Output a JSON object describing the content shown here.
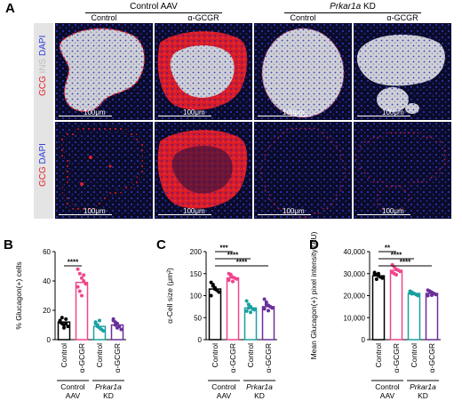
{
  "panel_a": {
    "letter": "A",
    "groups": [
      {
        "title": "Control AAV",
        "italic_part": "",
        "rest": ""
      },
      {
        "title": "",
        "italic_part": "Prkar1a",
        "rest": " KD"
      }
    ],
    "columns": [
      "Control",
      "α-GCGR",
      "Control",
      "α-GCGR"
    ],
    "row_labels": [
      {
        "parts": [
          {
            "text": "GCG",
            "color": "#e0202a"
          },
          {
            "text": " INS",
            "color": "#bdbdbd"
          },
          {
            "text": " DAPI",
            "color": "#2a3ad8"
          }
        ]
      },
      {
        "parts": [
          {
            "text": "GCG",
            "color": "#e0202a"
          },
          {
            "text": " DAPI",
            "color": "#2a3ad8"
          }
        ]
      }
    ],
    "scale_bar": "100μm"
  },
  "chart_data": [
    {
      "letter": "B",
      "type": "bar",
      "ylabel": "% Glucagon(+) cells",
      "ylim": [
        0,
        60
      ],
      "yticks": [
        0,
        20,
        40,
        60
      ],
      "categories": [
        "Control",
        "α-GCGR",
        "Control",
        "α-GCGR"
      ],
      "colors": [
        "#000000",
        "#f0468c",
        "#1aa0a0",
        "#6a2f9a"
      ],
      "means": [
        12,
        39,
        9,
        10
      ],
      "points": [
        [
          13,
          11,
          10,
          14,
          9,
          12,
          15,
          8,
          11
        ],
        [
          48,
          45,
          42,
          40,
          38,
          36,
          33,
          30,
          44
        ],
        [
          12,
          10,
          8,
          7,
          6,
          11,
          9,
          13
        ],
        [
          14,
          12,
          11,
          9,
          7,
          13,
          10,
          8
        ]
      ],
      "significance": [
        {
          "from": 0,
          "to": 1,
          "label": "****"
        }
      ],
      "group_labels": [
        {
          "text": "Control",
          "text2": "AAV",
          "italic": false
        },
        {
          "text": "Prkar1a",
          "text2": "KD",
          "italic": true
        }
      ]
    },
    {
      "letter": "C",
      "type": "bar",
      "ylabel": "α-Cell size (μm²)",
      "ylim": [
        0,
        200
      ],
      "yticks": [
        0,
        50,
        100,
        150,
        200
      ],
      "categories": [
        "Control",
        "α-GCGR",
        "Control",
        "α-GCGR"
      ],
      "colors": [
        "#000000",
        "#f0468c",
        "#1aa0a0",
        "#6a2f9a"
      ],
      "means": [
        115,
        140,
        72,
        75
      ],
      "points": [
        [
          130,
          122,
          118,
          112,
          108,
          100,
          125,
          115
        ],
        [
          150,
          145,
          142,
          140,
          138,
          135,
          148,
          132
        ],
        [
          88,
          80,
          75,
          70,
          68,
          65,
          72,
          62
        ],
        [
          92,
          85,
          78,
          75,
          72,
          70,
          80,
          66
        ]
      ],
      "significance": [
        {
          "from": 0,
          "to": 1,
          "label": "***"
        },
        {
          "from": 0,
          "to": 2,
          "label": "****"
        },
        {
          "from": 0,
          "to": 3,
          "label": "****"
        }
      ],
      "group_labels": [
        {
          "text": "Control",
          "text2": "AAV",
          "italic": false
        },
        {
          "text": "Prkar1a",
          "text2": "KD",
          "italic": true
        }
      ]
    },
    {
      "letter": "D",
      "type": "bar",
      "ylabel": "Mean Glucagon(+) pixel intensity (AU)",
      "ylim": [
        0,
        40000
      ],
      "yticks": [
        0,
        10000,
        20000,
        30000,
        40000
      ],
      "ytick_labels": [
        "0",
        "10,000",
        "20,000",
        "30,000",
        "40,000"
      ],
      "categories": [
        "Control",
        "α-GCGR",
        "Control",
        "α-GCGR"
      ],
      "colors": [
        "#000000",
        "#f0468c",
        "#1aa0a0",
        "#6a2f9a"
      ],
      "means": [
        29000,
        31500,
        21000,
        21000
      ],
      "points": [
        [
          30500,
          29500,
          29000,
          28500,
          28000,
          29800,
          27500,
          30000
        ],
        [
          34000,
          33000,
          32000,
          31500,
          31000,
          30500,
          30000,
          29500
        ],
        [
          22000,
          21500,
          21000,
          20500,
          20000,
          21200,
          20800
        ],
        [
          22500,
          22000,
          21500,
          21000,
          20500,
          20000,
          21800,
          20200
        ]
      ],
      "significance": [
        {
          "from": 0,
          "to": 1,
          "label": "**"
        },
        {
          "from": 0,
          "to": 2,
          "label": "****"
        },
        {
          "from": 0,
          "to": 3,
          "label": "****"
        }
      ],
      "group_labels": [
        {
          "text": "Control",
          "text2": "AAV",
          "italic": false
        },
        {
          "text": "Prkar1a",
          "text2": "KD",
          "italic": true
        }
      ]
    }
  ]
}
